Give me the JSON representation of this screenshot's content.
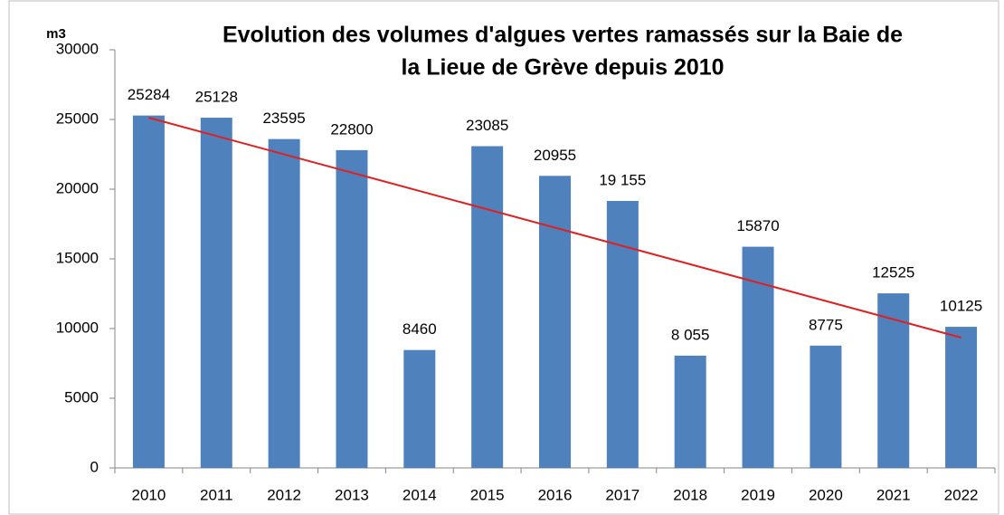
{
  "chart_data": {
    "type": "bar",
    "title": [
      "Evolution des volumes d'algues vertes ramassés sur la Baie de",
      "la Lieue de Grève depuis 2010"
    ],
    "y_label": "m3",
    "categories": [
      "2010",
      "2011",
      "2012",
      "2013",
      "2014",
      "2015",
      "2016",
      "2017",
      "2018",
      "2019",
      "2020",
      "2021",
      "2022"
    ],
    "values": [
      25284,
      25128,
      23595,
      22800,
      8460,
      23085,
      20955,
      19155,
      8055,
      15870,
      8775,
      12525,
      10125
    ],
    "value_labels": [
      "25284",
      "25128",
      "23595",
      "22800",
      "8460",
      "23085",
      "20955",
      "19 155",
      "8 055",
      "15870",
      "8775",
      "12525",
      "10125"
    ],
    "color": "#4f81bd",
    "trendline": {
      "color": "#e02020",
      "values": [
        25130,
        9350
      ]
    },
    "ylim": [
      0,
      30000
    ],
    "yticks": [
      0,
      5000,
      10000,
      15000,
      20000,
      25000,
      30000
    ],
    "grid": false
  }
}
